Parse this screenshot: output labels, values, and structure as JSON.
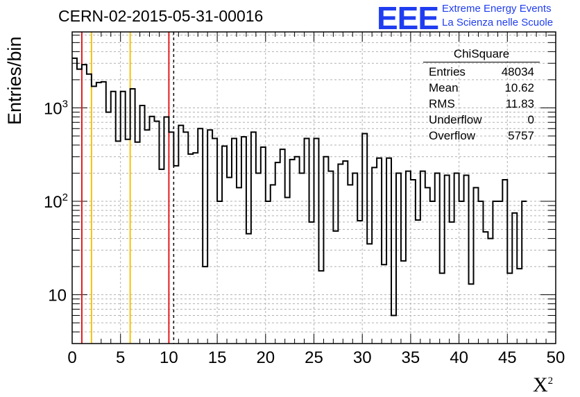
{
  "chart_data": {
    "type": "bar",
    "style": "step-histogram",
    "title": "CERN-02-2015-05-31-00016",
    "xlabel": "X",
    "xlabel_sup": "2",
    "ylabel": "Entries/bin",
    "xlim": [
      0,
      50
    ],
    "ylim": [
      3,
      6500
    ],
    "yscale": "log",
    "grid": true,
    "bin_width": 0.5,
    "x_ticks": [
      {
        "value": 0,
        "label": "0"
      },
      {
        "value": 5,
        "label": "5"
      },
      {
        "value": 10,
        "label": "10"
      },
      {
        "value": 15,
        "label": "15"
      },
      {
        "value": 20,
        "label": "20"
      },
      {
        "value": 25,
        "label": "25"
      },
      {
        "value": 30,
        "label": "30"
      },
      {
        "value": 35,
        "label": "35"
      },
      {
        "value": 40,
        "label": "40"
      },
      {
        "value": 45,
        "label": "45"
      },
      {
        "value": 50,
        "label": "50"
      }
    ],
    "y_ticks": [
      {
        "value": 10,
        "label": "10",
        "sup": ""
      },
      {
        "value": 100,
        "label": "10",
        "sup": "2"
      },
      {
        "value": 1000,
        "label": "10",
        "sup": "3"
      }
    ],
    "values": [
      3400,
      2600,
      2900,
      2300,
      1700,
      1870,
      1900,
      900,
      1500,
      440,
      1500,
      460,
      1600,
      430,
      1060,
      580,
      810,
      720,
      220,
      800,
      550,
      240,
      650,
      550,
      320,
      330,
      600,
      20,
      580,
      470,
      100,
      390,
      180,
      470,
      140,
      490,
      45,
      550,
      200,
      380,
      100,
      150,
      260,
      360,
      110,
      280,
      300,
      200,
      470,
      60,
      470,
      18,
      300,
      210,
      48,
      250,
      270,
      150,
      200,
      62,
      530,
      35,
      230,
      290,
      21,
      290,
      6,
      200,
      23,
      210,
      170,
      63,
      210,
      140,
      100,
      200,
      17,
      190,
      60,
      200,
      100,
      190,
      13,
      140,
      100,
      47,
      40,
      100,
      100,
      170,
      17,
      75,
      19,
      100
    ],
    "vertical_lines": [
      {
        "x": 1,
        "color": "#e41a1c",
        "style": "solid"
      },
      {
        "x": 2,
        "color": "#f5c20a",
        "style": "solid"
      },
      {
        "x": 6,
        "color": "#f5c20a",
        "style": "solid"
      },
      {
        "x": 10,
        "color": "#e41a1c",
        "style": "solid"
      },
      {
        "x": 10.5,
        "color": "#000000",
        "style": "dashed"
      }
    ],
    "stats_box": {
      "title": "ChiSquare",
      "rows": [
        {
          "label": "Entries",
          "value": "48034"
        },
        {
          "label": "Mean",
          "value": "10.62"
        },
        {
          "label": "RMS",
          "value": "11.83"
        },
        {
          "label": "Underflow",
          "value": "0"
        },
        {
          "label": "Overflow",
          "value": "5757"
        }
      ]
    }
  },
  "logo": {
    "mark": "EEE",
    "line1": "Extreme Energy Events",
    "line2": "La Scienza nelle Scuole",
    "color": "#1f3df0"
  }
}
